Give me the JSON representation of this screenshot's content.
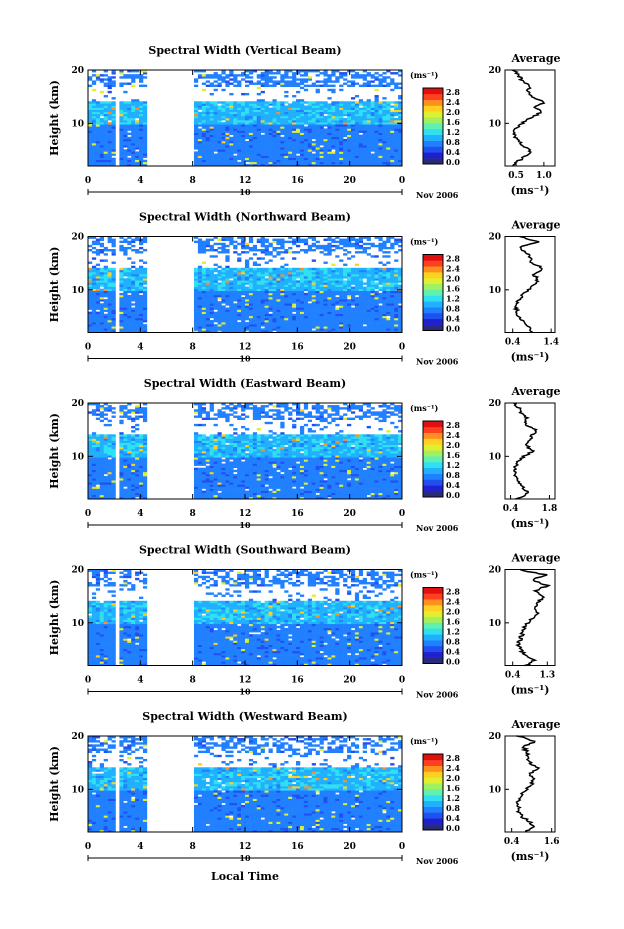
{
  "figure": {
    "xlabel": "Local Time",
    "date_label": "10",
    "month_label": "Nov 2006",
    "colorbar_unit": "(ms⁻¹)",
    "avg_title": "Average",
    "avg_xlabel": "(ms⁻¹)"
  },
  "colorbar": {
    "ticks": [
      "2.8",
      "2.4",
      "2.0",
      "1.6",
      "1.2",
      "0.8",
      "0.4",
      "0.0"
    ],
    "colors": [
      "#2a2a7a",
      "#2020d0",
      "#2050f0",
      "#2080ff",
      "#20b0ff",
      "#30e0f0",
      "#60f0b0",
      "#a0f060",
      "#e0f030",
      "#ffd020",
      "#ff9020",
      "#ff4020",
      "#e01010"
    ]
  },
  "chart_data": [
    {
      "type": "heatmap",
      "title": "Spectral Width (Vertical Beam)",
      "ylabel": "Height (km)",
      "x_ticks": [
        "0",
        "4",
        "8",
        "12",
        "16",
        "20",
        "0"
      ],
      "xlim": [
        0,
        24
      ],
      "y_ticks": [
        "20",
        "10"
      ],
      "ylim": [
        2,
        20
      ],
      "data_gaps_hours": [
        [
          2.2,
          2.5
        ],
        [
          4.5,
          8.0
        ]
      ],
      "avg_profile": {
        "x_ticks": [
          "0.5",
          "1.0"
        ],
        "xlim": [
          0.3,
          1.2
        ],
        "heights_km": [
          2,
          3,
          4,
          5,
          6,
          7,
          8,
          9,
          10,
          11,
          12,
          13,
          14,
          15,
          16,
          17,
          18,
          19,
          20
        ],
        "values": [
          0.45,
          0.55,
          0.7,
          0.75,
          0.6,
          0.5,
          0.45,
          0.5,
          0.6,
          0.75,
          0.95,
          0.85,
          1.0,
          0.8,
          0.7,
          0.75,
          0.6,
          0.55,
          0.45
        ]
      }
    },
    {
      "type": "heatmap",
      "title": "Spectral Width (Northward Beam)",
      "ylabel": "Height (km)",
      "x_ticks": [
        "0",
        "4",
        "8",
        "12",
        "16",
        "20",
        "0"
      ],
      "xlim": [
        0,
        24
      ],
      "y_ticks": [
        "20",
        "10"
      ],
      "ylim": [
        2,
        20
      ],
      "data_gaps_hours": [
        [
          2.2,
          2.5
        ],
        [
          4.5,
          8.0
        ]
      ],
      "avg_profile": {
        "x_ticks": [
          "0.4",
          "1.4"
        ],
        "xlim": [
          0.2,
          1.5
        ],
        "heights_km": [
          2,
          3,
          4,
          5,
          6,
          7,
          8,
          9,
          10,
          11,
          12,
          13,
          14,
          15,
          16,
          17,
          18,
          19,
          20
        ],
        "values": [
          0.9,
          0.85,
          0.7,
          0.55,
          0.5,
          0.5,
          0.55,
          0.65,
          0.8,
          1.0,
          1.05,
          0.95,
          1.2,
          0.9,
          0.85,
          0.75,
          0.6,
          1.05,
          0.6
        ]
      }
    },
    {
      "type": "heatmap",
      "title": "Spectral Width (Eastward Beam)",
      "ylabel": "Height (km)",
      "x_ticks": [
        "0",
        "4",
        "8",
        "12",
        "16",
        "20",
        "0"
      ],
      "xlim": [
        0,
        24
      ],
      "y_ticks": [
        "20",
        "10"
      ],
      "ylim": [
        2,
        20
      ],
      "data_gaps_hours": [
        [
          2.2,
          2.5
        ],
        [
          4.5,
          8.0
        ]
      ],
      "avg_profile": {
        "x_ticks": [
          "0.4",
          "1.8"
        ],
        "xlim": [
          0.2,
          2.0
        ],
        "heights_km": [
          2,
          3,
          4,
          5,
          6,
          7,
          8,
          9,
          10,
          11,
          12,
          13,
          14,
          15,
          16,
          17,
          18,
          19,
          20
        ],
        "values": [
          0.6,
          1.0,
          0.9,
          0.7,
          0.6,
          0.55,
          0.55,
          0.65,
          0.9,
          1.2,
          1.0,
          1.1,
          1.2,
          1.3,
          0.9,
          1.0,
          0.8,
          0.7,
          0.55
        ]
      }
    },
    {
      "type": "heatmap",
      "title": "Spectral Width (Southward Beam)",
      "ylabel": "Height (km)",
      "x_ticks": [
        "0",
        "4",
        "8",
        "12",
        "16",
        "20",
        "0"
      ],
      "xlim": [
        0,
        24
      ],
      "y_ticks": [
        "20",
        "10"
      ],
      "ylim": [
        2,
        20
      ],
      "data_gaps_hours": [
        [
          2.2,
          2.5
        ],
        [
          4.5,
          8.0
        ]
      ],
      "avg_profile": {
        "x_ticks": [
          "0.4",
          "1.3"
        ],
        "xlim": [
          0.2,
          1.5
        ],
        "heights_km": [
          2,
          3,
          4,
          5,
          6,
          7,
          8,
          9,
          10,
          11,
          12,
          13,
          14,
          15,
          16,
          17,
          18,
          19,
          20
        ],
        "values": [
          0.75,
          0.95,
          0.7,
          0.6,
          0.55,
          0.6,
          0.65,
          0.7,
          0.8,
          0.95,
          1.05,
          1.0,
          1.1,
          1.2,
          1.0,
          1.3,
          0.9,
          1.25,
          0.55
        ]
      }
    },
    {
      "type": "heatmap",
      "title": "Spectral Width (Westward Beam)",
      "ylabel": "Height (km)",
      "x_ticks": [
        "0",
        "4",
        "8",
        "12",
        "16",
        "20",
        "0"
      ],
      "xlim": [
        0,
        24
      ],
      "y_ticks": [
        "20",
        "10"
      ],
      "ylim": [
        2,
        20
      ],
      "data_gaps_hours": [
        [
          2.2,
          2.5
        ],
        [
          4.5,
          8.0
        ]
      ],
      "avg_profile": {
        "x_ticks": [
          "0.4",
          "1.6"
        ],
        "xlim": [
          0.2,
          1.7
        ],
        "heights_km": [
          2,
          3,
          4,
          5,
          6,
          7,
          8,
          9,
          10,
          11,
          12,
          13,
          14,
          15,
          16,
          17,
          18,
          19,
          20
        ],
        "values": [
          0.8,
          1.1,
          0.9,
          0.7,
          0.6,
          0.6,
          0.6,
          0.7,
          0.85,
          1.0,
          1.05,
          0.95,
          1.2,
          0.95,
          0.9,
          0.85,
          0.75,
          1.1,
          0.6
        ]
      }
    }
  ]
}
